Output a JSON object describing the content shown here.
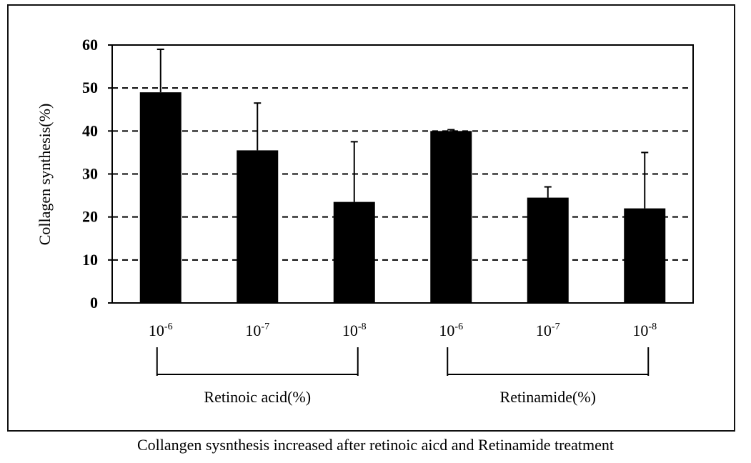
{
  "chart_data": {
    "type": "bar",
    "categories": [
      "10-6",
      "10-7",
      "10-8",
      "10-6",
      "10-7",
      "10-8"
    ],
    "category_labels": [
      {
        "base": "10",
        "exp": "-6"
      },
      {
        "base": "10",
        "exp": "-7"
      },
      {
        "base": "10",
        "exp": "-8"
      },
      {
        "base": "10",
        "exp": "-6"
      },
      {
        "base": "10",
        "exp": "-7"
      },
      {
        "base": "10",
        "exp": "-8"
      }
    ],
    "values": [
      49,
      35.5,
      23.5,
      40,
      24.5,
      22
    ],
    "error_upper": [
      59,
      46.5,
      37.5,
      40.3,
      27,
      35
    ],
    "groups": [
      {
        "label": "Retinoic acid(%)",
        "start": 0,
        "end": 2
      },
      {
        "label": "Retinamide(%)",
        "start": 3,
        "end": 5
      }
    ],
    "ylabel": "Collagen synthesis(%)",
    "xlabel": "",
    "title": "",
    "ylim": [
      0,
      60
    ],
    "yticks": [
      0,
      10,
      20,
      30,
      40,
      50,
      60
    ],
    "grid": "dashed horizontal",
    "bar_color": "#000000",
    "caption": "Collangen sysnthesis increased after retinoic aicd and Retinamide treatment"
  }
}
